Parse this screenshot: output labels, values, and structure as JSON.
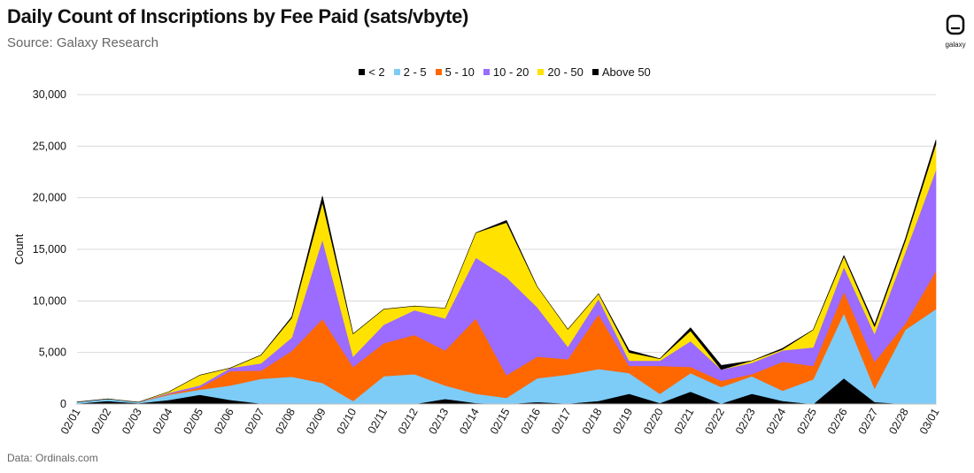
{
  "title": "Daily Count of Inscriptions by Fee Paid (sats/vbyte)",
  "subtitle": "Source: Galaxy Research",
  "footnote": "Data: Ordinals.com",
  "logo_text": "galaxy",
  "chart_data": {
    "type": "area",
    "stacked": true,
    "title": "Daily Count of Inscriptions by Fee Paid (sats/vbyte)",
    "xlabel": "",
    "ylabel": "Count",
    "ylim": [
      0,
      30000
    ],
    "yticks": [
      0,
      5000,
      10000,
      15000,
      20000,
      25000,
      30000
    ],
    "ytick_labels": [
      "0",
      "5,000",
      "10,000",
      "15,000",
      "20,000",
      "25,000",
      "30,000"
    ],
    "grid": true,
    "legend_position": "top-center",
    "categories": [
      "02/01",
      "02/02",
      "02/03",
      "02/04",
      "02/05",
      "02/06",
      "02/07",
      "02/08",
      "02/09",
      "02/10",
      "02/11",
      "02/12",
      "02/13",
      "02/14",
      "02/15",
      "02/16",
      "02/17",
      "02/18",
      "02/19",
      "02/20",
      "02/21",
      "02/22",
      "02/23",
      "02/24",
      "02/25",
      "02/26",
      "02/27",
      "02/28",
      "03/01"
    ],
    "series": [
      {
        "name": "< 2",
        "color": "#000000",
        "values": [
          50,
          300,
          80,
          400,
          900,
          400,
          50,
          50,
          50,
          0,
          0,
          0,
          500,
          100,
          0,
          200,
          50,
          300,
          1000,
          100,
          1200,
          50,
          1000,
          300,
          0,
          2500,
          200,
          0,
          0
        ]
      },
      {
        "name": "2 - 5",
        "color": "#7DCBF7",
        "values": [
          150,
          200,
          100,
          500,
          500,
          1400,
          2400,
          2600,
          2000,
          300,
          2700,
          2900,
          1300,
          900,
          600,
          2300,
          2800,
          3100,
          2000,
          900,
          1800,
          1600,
          1700,
          1000,
          2400,
          6300,
          1300,
          7200,
          9200
        ]
      },
      {
        "name": "5 - 10",
        "color": "#FF6700",
        "values": [
          0,
          0,
          0,
          100,
          200,
          1400,
          800,
          2500,
          6200,
          3300,
          3200,
          3800,
          3400,
          7300,
          2200,
          2100,
          1500,
          5300,
          700,
          2700,
          600,
          600,
          200,
          2800,
          1300,
          2100,
          2600,
          600,
          3700
        ]
      },
      {
        "name": "10 - 20",
        "color": "#9C6BFF",
        "values": [
          0,
          0,
          0,
          100,
          200,
          300,
          700,
          1300,
          7700,
          1000,
          1800,
          2400,
          3100,
          5900,
          9500,
          4800,
          1200,
          1500,
          500,
          500,
          2500,
          1100,
          1100,
          1100,
          1800,
          2400,
          2700,
          6900,
          9800
        ]
      },
      {
        "name": "20 - 50",
        "color": "#FFE200",
        "values": [
          0,
          0,
          0,
          100,
          1000,
          0,
          800,
          1900,
          3600,
          2200,
          1500,
          400,
          1000,
          2400,
          5300,
          2000,
          1700,
          500,
          800,
          200,
          1000,
          0,
          200,
          100,
          1700,
          1000,
          700,
          1100,
          2500
        ]
      },
      {
        "name": "Above 50",
        "color": "#000000",
        "values": [
          0,
          0,
          0,
          0,
          0,
          0,
          0,
          100,
          600,
          0,
          0,
          0,
          0,
          0,
          200,
          0,
          0,
          0,
          200,
          0,
          300,
          400,
          0,
          100,
          0,
          100,
          200,
          200,
          400
        ]
      }
    ]
  }
}
